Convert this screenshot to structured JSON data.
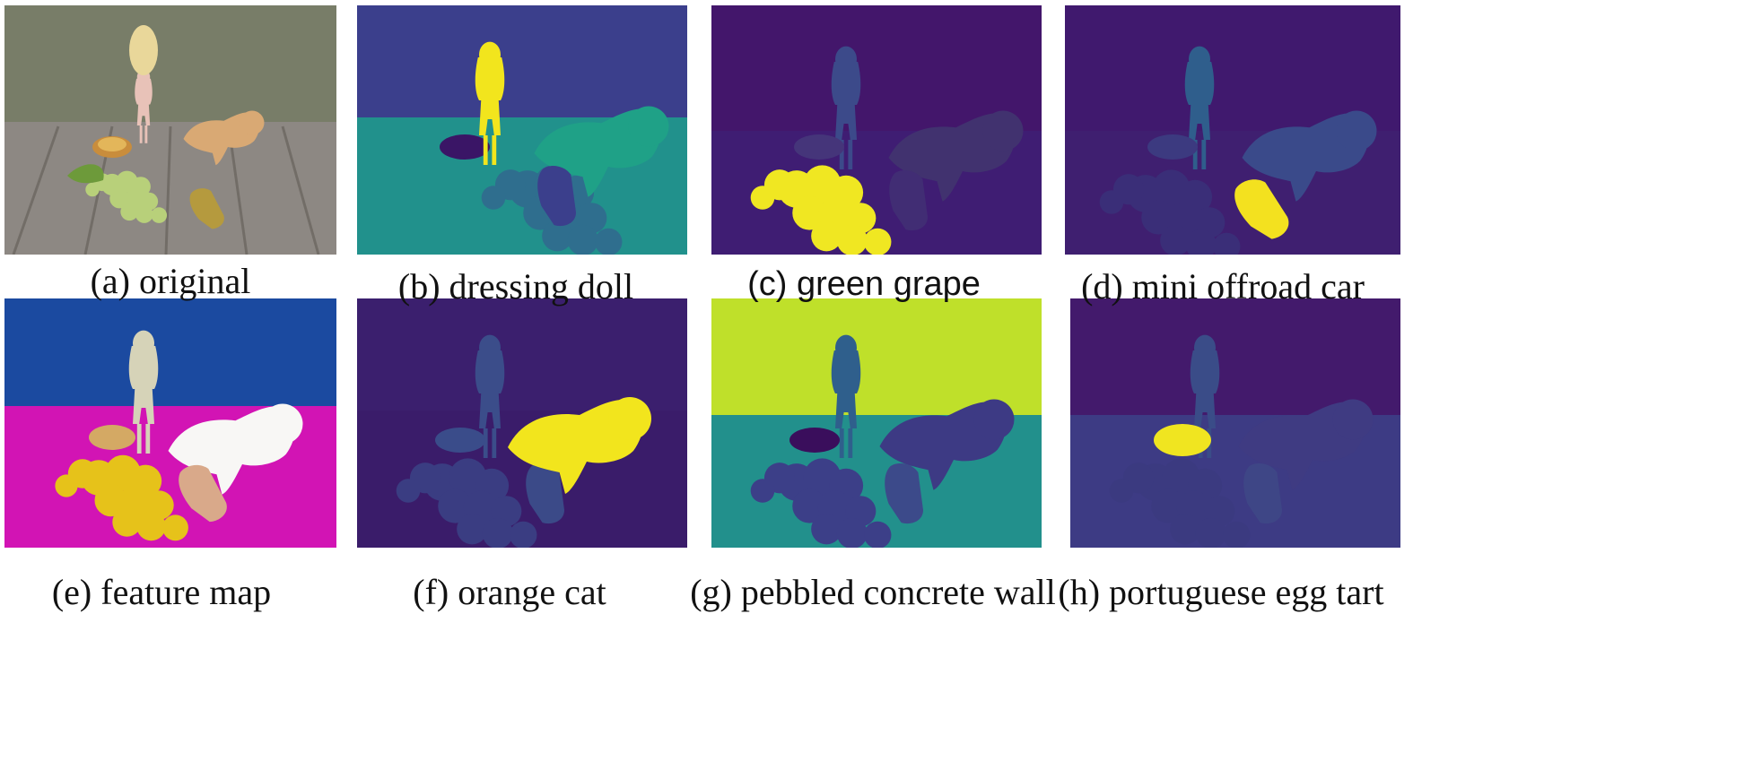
{
  "figure": {
    "panels": [
      {
        "id": "a",
        "caption": "(a) original"
      },
      {
        "id": "b",
        "caption": "(b) dressing doll"
      },
      {
        "id": "c",
        "caption": "(c) green grape"
      },
      {
        "id": "d",
        "caption": "(d) mini offroad car"
      },
      {
        "id": "e",
        "caption": "(e) feature map"
      },
      {
        "id": "f",
        "caption": "(f) orange cat"
      },
      {
        "id": "g",
        "caption": "(g) pebbled concrete wall"
      },
      {
        "id": "h",
        "caption": "(h) portuguese egg tart"
      }
    ]
  },
  "colors": {
    "viridis_dark": "#3b1f6e",
    "viridis_mid": "#2e6f8e",
    "viridis_teal": "#21918c",
    "viridis_yellow": "#f2e51d",
    "feature_blue": "#1b4aa0",
    "feature_magenta": "#d214b4"
  }
}
